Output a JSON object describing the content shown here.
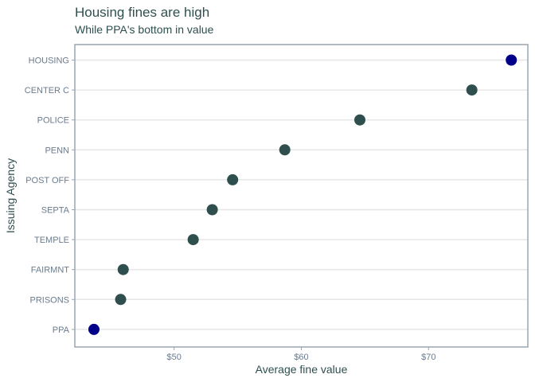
{
  "chart_data": {
    "type": "scatter",
    "title": "Housing fines are high",
    "subtitle": "While PPA's bottom in value",
    "xlabel": "Average fine value",
    "ylabel": "Issuing Agency",
    "xlim": [
      42.2,
      77.8
    ],
    "xticks": [
      50,
      60,
      70
    ],
    "xtick_labels": [
      "$50",
      "$60",
      "$70"
    ],
    "grid": true,
    "highlight_color": "#00008b",
    "point_color": "#2f4f4f",
    "points": [
      {
        "agency": "HOUSING",
        "value": 76.5,
        "highlight": true
      },
      {
        "agency": "CENTER C",
        "value": 73.4,
        "highlight": false
      },
      {
        "agency": "POLICE",
        "value": 64.6,
        "highlight": false
      },
      {
        "agency": "PENN",
        "value": 58.7,
        "highlight": false
      },
      {
        "agency": "POST OFF",
        "value": 54.6,
        "highlight": false
      },
      {
        "agency": "SEPTA",
        "value": 53.0,
        "highlight": false
      },
      {
        "agency": "TEMPLE",
        "value": 51.5,
        "highlight": false
      },
      {
        "agency": "FAIRMNT",
        "value": 46.0,
        "highlight": false
      },
      {
        "agency": "PRISONS",
        "value": 45.8,
        "highlight": false
      },
      {
        "agency": "PPA",
        "value": 43.7,
        "highlight": true
      }
    ]
  }
}
